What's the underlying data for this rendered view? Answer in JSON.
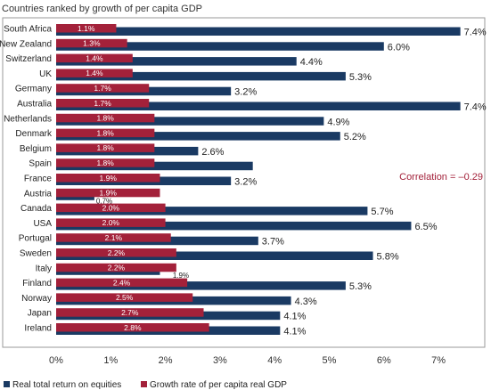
{
  "chart_data": {
    "type": "bar",
    "orientation": "horizontal",
    "title": "Countries ranked by growth of per capita GDP",
    "categories": [
      "South Africa",
      "New Zealand",
      "Switzerland",
      "UK",
      "Germany",
      "Australia",
      "Netherlands",
      "Denmark",
      "Belgium",
      "Spain",
      "France",
      "Austria",
      "Canada",
      "USA",
      "Portugal",
      "Sweden",
      "Italy",
      "Finland",
      "Norway",
      "Japan",
      "Ireland"
    ],
    "series": [
      {
        "name": "Real total return on equities",
        "color": "#1a3a63",
        "values": [
          7.4,
          6.0,
          4.4,
          5.3,
          3.2,
          7.4,
          4.9,
          5.2,
          2.6,
          3.6,
          3.2,
          0.7,
          5.7,
          6.5,
          3.7,
          5.8,
          1.9,
          5.3,
          4.3,
          4.1,
          4.1
        ],
        "labels": [
          "7.4%",
          "6.0%",
          "4.4%",
          "5.3%",
          "3.2%",
          "7.4%",
          "4.9%",
          "5.2%",
          "2.6%",
          "",
          "3.2%",
          "0.7%",
          "5.7%",
          "6.5%",
          "3.7%",
          "5.8%",
          "1.9%",
          "5.3%",
          "4.3%",
          "4.1%",
          "4.1%"
        ]
      },
      {
        "name": "Growth rate of per capita real GDP",
        "color": "#a3213a",
        "values": [
          1.1,
          1.3,
          1.4,
          1.4,
          1.7,
          1.7,
          1.8,
          1.8,
          1.8,
          1.8,
          1.9,
          1.9,
          2.0,
          2.0,
          2.1,
          2.2,
          2.2,
          2.4,
          2.5,
          2.7,
          2.8
        ],
        "labels": [
          "1.1%",
          "1.3%",
          "1.4%",
          "1.4%",
          "1.7%",
          "1.7%",
          "1.8%",
          "1.8%",
          "1.8%",
          "1.8%",
          "1.9%",
          "1.9%",
          "2.0%",
          "2.0%",
          "2.1%",
          "2.2%",
          "2.2%",
          "2.4%",
          "2.5%",
          "2.7%",
          "2.8%"
        ]
      }
    ],
    "x_ticks": [
      "0%",
      "1%",
      "2%",
      "3%",
      "4%",
      "5%",
      "6%",
      "7%"
    ],
    "xlim": [
      0,
      7.8
    ],
    "annotation": "Correlation = –0.29",
    "grid": false,
    "legend": "bottom-left"
  }
}
